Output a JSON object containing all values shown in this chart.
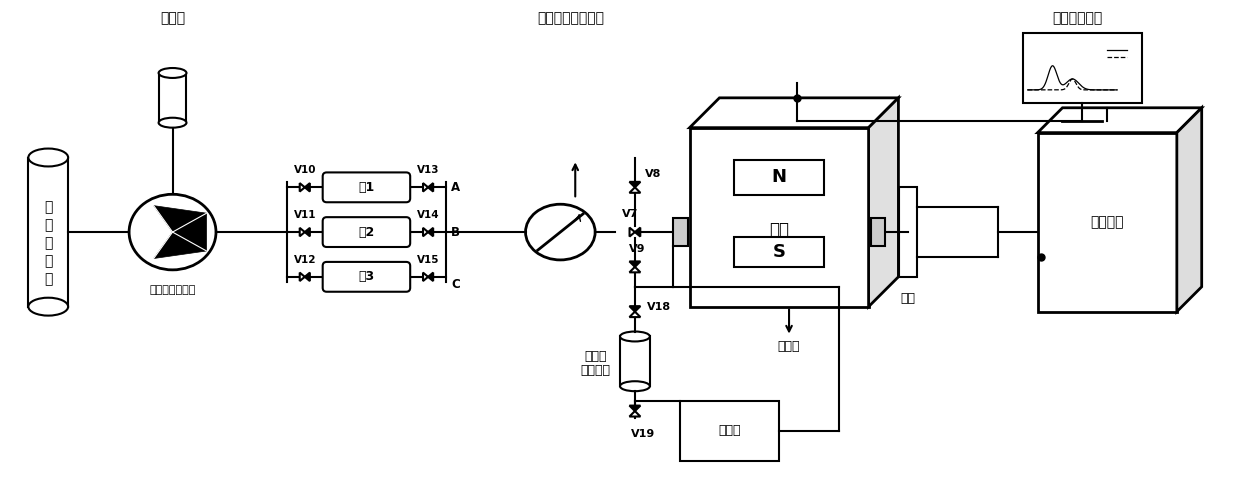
{
  "bg_color": "#ffffff",
  "labels": {
    "coal_tank": "柴油罐",
    "high_temp_control": "高温高压控制装置",
    "data_acquisition": "数据采集装置",
    "air_compressor": [
      "空",
      "气",
      "压",
      "缩",
      "机"
    ],
    "pump": "恒速恒压双缸泵",
    "container1": "容1",
    "container2": "容2",
    "container3": "容3",
    "fluoride_line1": "氟化液",
    "fluoride_line2": "（加压）",
    "magnet_box": "磁体筘",
    "core": "岩心",
    "litre": "里筒",
    "rf_device": "射频装置",
    "cooling_pump": "冷却泵"
  },
  "valve_labels": [
    "V10",
    "V11",
    "V12",
    "V13",
    "V14",
    "V15",
    "V7",
    "V8",
    "V9",
    "V18",
    "V19"
  ],
  "abc_labels": [
    "A",
    "B",
    "C"
  ],
  "ns_labels": [
    "N",
    "S"
  ]
}
